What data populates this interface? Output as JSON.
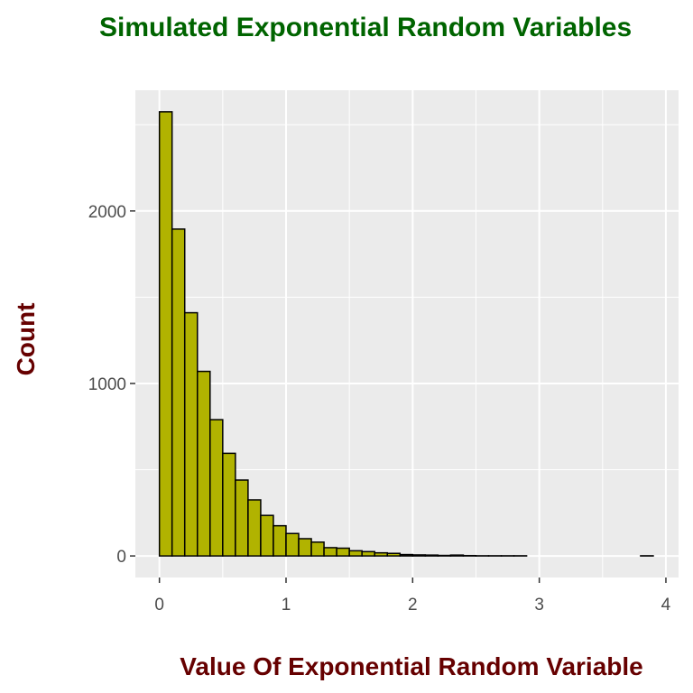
{
  "chart_data": {
    "type": "bar",
    "title": "Simulated Exponential Random Variables",
    "xlabel": "Value Of Exponential Random Variable",
    "ylabel": "Count",
    "x_ticks": [
      "0",
      "1",
      "2",
      "3",
      "4"
    ],
    "y_ticks": [
      "0",
      "1000",
      "2000"
    ],
    "xlim": [
      -0.19,
      4.1
    ],
    "ylim": [
      -125,
      2700
    ],
    "bin_width": 0.1,
    "bin_starts": [
      0.0,
      0.1,
      0.2,
      0.3,
      0.4,
      0.5,
      0.6,
      0.7,
      0.8,
      0.9,
      1.0,
      1.1,
      1.2,
      1.3,
      1.4,
      1.5,
      1.6,
      1.7,
      1.8,
      1.9,
      2.0,
      2.1,
      2.2,
      2.3,
      2.4,
      2.5,
      2.6,
      2.7,
      2.8,
      2.9,
      3.0,
      3.1,
      3.2,
      3.3,
      3.4,
      3.5,
      3.6,
      3.7,
      3.8
    ],
    "values": [
      2575,
      1895,
      1410,
      1070,
      790,
      595,
      440,
      325,
      235,
      175,
      130,
      100,
      80,
      48,
      45,
      30,
      25,
      18,
      15,
      8,
      6,
      5,
      3,
      5,
      2,
      1,
      1,
      1,
      1,
      0,
      0,
      0,
      0,
      0,
      0,
      0,
      0,
      0,
      1
    ],
    "grid": true,
    "legend": "none",
    "colors": {
      "bar_fill": "#B1B300",
      "bar_stroke": "#000000",
      "panel_background": "#EBEBEB",
      "grid_line": "#FFFFFF",
      "title": "#006400",
      "axis_title": "#660000",
      "tick_label": "#4D4D4D"
    }
  }
}
